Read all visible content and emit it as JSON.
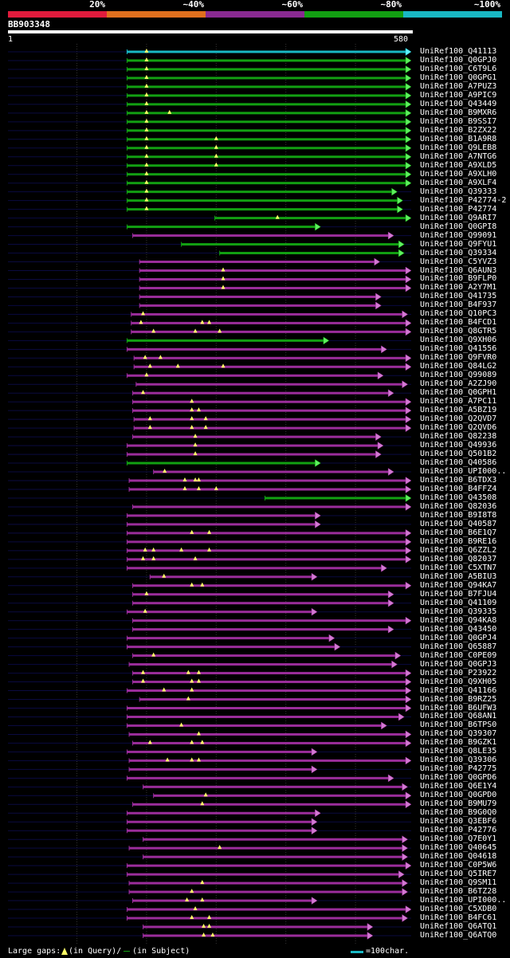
{
  "legend": [
    {
      "label": "20%",
      "color": "#e01b3c"
    },
    {
      "label": "~40%",
      "color": "#e0701e"
    },
    {
      "label": "~60%",
      "color": "#8a2a92"
    },
    {
      "label": "~80%",
      "color": "#12a012"
    },
    {
      "label": "~100%",
      "color": "#19b8c4"
    }
  ],
  "query": {
    "name": "BB903348",
    "start_label": "1",
    "end_label": "580",
    "length": 580
  },
  "colors": {
    "cyan": "#19b8c4",
    "green": "#12a012",
    "magenta": "#9b2d9b",
    "arrow_magenta": "#d27ad2",
    "arrow_green": "#5ef05e",
    "arrow_cyan": "#5ef0ff",
    "gap": "#ffff66",
    "faint": "#0a0a40",
    "grid": "#333333"
  },
  "hits": [
    {
      "id": "UniRef100_Q41113",
      "start": 172,
      "end": 580,
      "color": "cyan",
      "gaps": [
        200
      ]
    },
    {
      "id": "UniRef100_Q0GPJ0",
      "start": 172,
      "end": 580,
      "color": "green",
      "gaps": [
        200
      ]
    },
    {
      "id": "UniRef100_C6T9L6",
      "start": 172,
      "end": 580,
      "color": "green",
      "gaps": [
        200
      ]
    },
    {
      "id": "UniRef100_Q0GPG1",
      "start": 172,
      "end": 580,
      "color": "green",
      "gaps": [
        200
      ]
    },
    {
      "id": "UniRef100_A7PUZ3",
      "start": 172,
      "end": 580,
      "color": "green",
      "gaps": [
        200
      ]
    },
    {
      "id": "UniRef100_A9PIC9",
      "start": 172,
      "end": 580,
      "color": "green",
      "gaps": [
        200
      ]
    },
    {
      "id": "UniRef100_Q43449",
      "start": 172,
      "end": 580,
      "color": "green",
      "gaps": [
        200
      ]
    },
    {
      "id": "UniRef100_B9MXR6",
      "start": 172,
      "end": 580,
      "color": "green",
      "gaps": [
        200,
        233
      ]
    },
    {
      "id": "UniRef100_B9SSI7",
      "start": 172,
      "end": 580,
      "color": "green",
      "gaps": [
        200
      ]
    },
    {
      "id": "UniRef100_B2ZX22",
      "start": 172,
      "end": 580,
      "color": "green",
      "gaps": [
        200
      ]
    },
    {
      "id": "UniRef100_B1A9R8",
      "start": 172,
      "end": 580,
      "color": "green",
      "gaps": [
        200,
        300
      ]
    },
    {
      "id": "UniRef100_Q9LEB8",
      "start": 172,
      "end": 580,
      "color": "green",
      "gaps": [
        200,
        300
      ]
    },
    {
      "id": "UniRef100_A7NTG6",
      "start": 172,
      "end": 580,
      "color": "green",
      "gaps": [
        200,
        300
      ]
    },
    {
      "id": "UniRef100_A9XLD5",
      "start": 172,
      "end": 580,
      "color": "green",
      "gaps": [
        200,
        300
      ]
    },
    {
      "id": "UniRef100_A9XLH0",
      "start": 172,
      "end": 580,
      "color": "green",
      "gaps": [
        200
      ]
    },
    {
      "id": "UniRef100_A9XLF4",
      "start": 172,
      "end": 580,
      "color": "green",
      "gaps": [
        200
      ]
    },
    {
      "id": "UniRef100_Q39333",
      "start": 172,
      "end": 560,
      "color": "green",
      "gaps": [
        200
      ]
    },
    {
      "id": "UniRef100_P42774-2",
      "start": 172,
      "end": 568,
      "color": "green",
      "gaps": [
        200
      ]
    },
    {
      "id": "UniRef100_P42774",
      "start": 172,
      "end": 568,
      "color": "green",
      "gaps": [
        200
      ]
    },
    {
      "id": "UniRef100_Q9ARI7",
      "start": 298,
      "end": 580,
      "color": "green",
      "gaps": [
        388
      ]
    },
    {
      "id": "UniRef100_Q0GPI8",
      "start": 172,
      "end": 450,
      "color": "green",
      "gaps": []
    },
    {
      "id": "UniRef100_Q99091",
      "start": 180,
      "end": 555,
      "color": "magenta",
      "gaps": []
    },
    {
      "id": "UniRef100_Q9FYU1",
      "start": 250,
      "end": 570,
      "color": "green",
      "gaps": []
    },
    {
      "id": "UniRef100_Q39334",
      "start": 305,
      "end": 570,
      "color": "green",
      "gaps": []
    },
    {
      "id": "UniRef100_C5YVZ3",
      "start": 190,
      "end": 535,
      "color": "magenta",
      "gaps": []
    },
    {
      "id": "UniRef100_Q6AUN3",
      "start": 190,
      "end": 580,
      "color": "magenta",
      "gaps": [
        310
      ]
    },
    {
      "id": "UniRef100_B9FLP0",
      "start": 190,
      "end": 580,
      "color": "magenta",
      "gaps": [
        310
      ]
    },
    {
      "id": "UniRef100_A2Y7M1",
      "start": 190,
      "end": 580,
      "color": "magenta",
      "gaps": [
        310
      ]
    },
    {
      "id": "UniRef100_Q41735",
      "start": 190,
      "end": 537,
      "color": "magenta",
      "gaps": []
    },
    {
      "id": "UniRef100_B4F937",
      "start": 190,
      "end": 537,
      "color": "magenta",
      "gaps": []
    },
    {
      "id": "UniRef100_Q10PC3",
      "start": 178,
      "end": 575,
      "color": "magenta",
      "gaps": [
        195
      ]
    },
    {
      "id": "UniRef100_B4FCD1",
      "start": 178,
      "end": 580,
      "color": "magenta",
      "gaps": [
        192,
        280,
        290
      ]
    },
    {
      "id": "UniRef100_Q8GTR5",
      "start": 178,
      "end": 580,
      "color": "magenta",
      "gaps": [
        210,
        270,
        305
      ]
    },
    {
      "id": "UniRef100_Q9XH06",
      "start": 172,
      "end": 462,
      "color": "green",
      "gaps": []
    },
    {
      "id": "UniRef100_Q41556",
      "start": 172,
      "end": 545,
      "color": "magenta",
      "gaps": []
    },
    {
      "id": "UniRef100_Q9FVR0",
      "start": 182,
      "end": 580,
      "color": "magenta",
      "gaps": [
        198,
        220
      ]
    },
    {
      "id": "UniRef100_Q84LG2",
      "start": 182,
      "end": 580,
      "color": "magenta",
      "gaps": [
        205,
        245,
        310
      ]
    },
    {
      "id": "UniRef100_Q99089",
      "start": 172,
      "end": 540,
      "color": "magenta",
      "gaps": [
        200
      ]
    },
    {
      "id": "UniRef100_A2ZJ90",
      "start": 185,
      "end": 575,
      "color": "magenta",
      "gaps": []
    },
    {
      "id": "UniRef100_Q0GPH1",
      "start": 180,
      "end": 555,
      "color": "magenta",
      "gaps": [
        195
      ]
    },
    {
      "id": "UniRef100_A7PC11",
      "start": 180,
      "end": 580,
      "color": "magenta",
      "gaps": [
        265
      ]
    },
    {
      "id": "UniRef100_A5BZ19",
      "start": 180,
      "end": 580,
      "color": "magenta",
      "gaps": [
        265,
        275
      ]
    },
    {
      "id": "UniRef100_Q2QVD7",
      "start": 182,
      "end": 580,
      "color": "magenta",
      "gaps": [
        205,
        265,
        285
      ]
    },
    {
      "id": "UniRef100_Q2QVD6",
      "start": 182,
      "end": 580,
      "color": "magenta",
      "gaps": [
        205,
        265,
        285
      ]
    },
    {
      "id": "UniRef100_Q82238",
      "start": 180,
      "end": 537,
      "color": "magenta",
      "gaps": [
        270
      ]
    },
    {
      "id": "UniRef100_Q49936",
      "start": 172,
      "end": 540,
      "color": "magenta",
      "gaps": [
        270
      ]
    },
    {
      "id": "UniRef100_Q501B2",
      "start": 172,
      "end": 537,
      "color": "magenta",
      "gaps": [
        270
      ]
    },
    {
      "id": "UniRef100_Q40586",
      "start": 172,
      "end": 450,
      "color": "green",
      "gaps": []
    },
    {
      "id": "UniRef100_UPI000..",
      "start": 210,
      "end": 555,
      "color": "magenta",
      "gaps": [
        226
      ]
    },
    {
      "id": "UniRef100_B6TDX3",
      "start": 175,
      "end": 580,
      "color": "magenta",
      "gaps": [
        255,
        270,
        275
      ]
    },
    {
      "id": "UniRef100_B4FFZ4",
      "start": 175,
      "end": 580,
      "color": "magenta",
      "gaps": [
        255,
        275,
        300
      ]
    },
    {
      "id": "UniRef100_Q43508",
      "start": 370,
      "end": 580,
      "color": "green",
      "gaps": []
    },
    {
      "id": "UniRef100_Q82036",
      "start": 180,
      "end": 580,
      "color": "magenta",
      "gaps": []
    },
    {
      "id": "UniRef100_B9I8T8",
      "start": 172,
      "end": 450,
      "color": "magenta",
      "gaps": []
    },
    {
      "id": "UniRef100_Q40587",
      "start": 172,
      "end": 450,
      "color": "magenta",
      "gaps": []
    },
    {
      "id": "UniRef100_B6E1Q7",
      "start": 172,
      "end": 580,
      "color": "magenta",
      "gaps": [
        265,
        290
      ]
    },
    {
      "id": "UniRef100_B9RE16",
      "start": 172,
      "end": 580,
      "color": "magenta",
      "gaps": []
    },
    {
      "id": "UniRef100_Q6ZZL2",
      "start": 172,
      "end": 580,
      "color": "magenta",
      "gaps": [
        198,
        210,
        250,
        290
      ]
    },
    {
      "id": "UniRef100_Q82037",
      "start": 172,
      "end": 580,
      "color": "magenta",
      "gaps": [
        195,
        210,
        270
      ]
    },
    {
      "id": "UniRef100_C5XTN7",
      "start": 172,
      "end": 545,
      "color": "magenta",
      "gaps": []
    },
    {
      "id": "UniRef100_A5BIU3",
      "start": 205,
      "end": 445,
      "color": "magenta",
      "gaps": [
        225
      ]
    },
    {
      "id": "UniRef100_Q94KA7",
      "start": 180,
      "end": 580,
      "color": "magenta",
      "gaps": [
        265,
        280
      ]
    },
    {
      "id": "UniRef100_B7FJU4",
      "start": 180,
      "end": 555,
      "color": "magenta",
      "gaps": [
        200
      ]
    },
    {
      "id": "UniRef100_Q41109",
      "start": 180,
      "end": 555,
      "color": "magenta",
      "gaps": []
    },
    {
      "id": "UniRef100_Q39335",
      "start": 172,
      "end": 445,
      "color": "magenta",
      "gaps": [
        198
      ]
    },
    {
      "id": "UniRef100_Q94KA8",
      "start": 180,
      "end": 580,
      "color": "magenta",
      "gaps": []
    },
    {
      "id": "UniRef100_Q43450",
      "start": 180,
      "end": 555,
      "color": "magenta",
      "gaps": []
    },
    {
      "id": "UniRef100_Q0GPJ4",
      "start": 172,
      "end": 470,
      "color": "magenta",
      "gaps": []
    },
    {
      "id": "UniRef100_Q65887",
      "start": 172,
      "end": 478,
      "color": "magenta",
      "gaps": []
    },
    {
      "id": "UniRef100_C0PE09",
      "start": 180,
      "end": 565,
      "color": "magenta",
      "gaps": [
        210
      ]
    },
    {
      "id": "UniRef100_Q0GPJ3",
      "start": 175,
      "end": 560,
      "color": "magenta",
      "gaps": []
    },
    {
      "id": "UniRef100_P23922",
      "start": 180,
      "end": 580,
      "color": "magenta",
      "gaps": [
        195,
        260,
        275
      ]
    },
    {
      "id": "UniRef100_Q9XH05",
      "start": 180,
      "end": 580,
      "color": "magenta",
      "gaps": [
        195,
        265,
        275
      ]
    },
    {
      "id": "UniRef100_Q41166",
      "start": 172,
      "end": 580,
      "color": "magenta",
      "gaps": [
        225,
        265
      ]
    },
    {
      "id": "UniRef100_B9RZ25",
      "start": 190,
      "end": 580,
      "color": "magenta",
      "gaps": [
        260
      ]
    },
    {
      "id": "UniRef100_B6UFW3",
      "start": 172,
      "end": 580,
      "color": "magenta",
      "gaps": []
    },
    {
      "id": "UniRef100_Q68AN1",
      "start": 172,
      "end": 570,
      "color": "magenta",
      "gaps": []
    },
    {
      "id": "UniRef100_B6TPS0",
      "start": 172,
      "end": 545,
      "color": "magenta",
      "gaps": [
        250
      ]
    },
    {
      "id": "UniRef100_Q39307",
      "start": 175,
      "end": 580,
      "color": "magenta",
      "gaps": [
        275
      ]
    },
    {
      "id": "UniRef100_B9GZK1",
      "start": 180,
      "end": 580,
      "color": "magenta",
      "gaps": [
        205,
        265,
        280
      ]
    },
    {
      "id": "UniRef100_Q8LE35",
      "start": 172,
      "end": 445,
      "color": "magenta",
      "gaps": []
    },
    {
      "id": "UniRef100_Q39306",
      "start": 175,
      "end": 580,
      "color": "magenta",
      "gaps": [
        230,
        265,
        275
      ]
    },
    {
      "id": "UniRef100_P42775",
      "start": 175,
      "end": 445,
      "color": "magenta",
      "gaps": []
    },
    {
      "id": "UniRef100_Q0GPD6",
      "start": 172,
      "end": 555,
      "color": "magenta",
      "gaps": []
    },
    {
      "id": "UniRef100_Q6E1Y4",
      "start": 195,
      "end": 575,
      "color": "magenta",
      "gaps": []
    },
    {
      "id": "UniRef100_Q0GPD0",
      "start": 210,
      "end": 580,
      "color": "magenta",
      "gaps": [
        285
      ]
    },
    {
      "id": "UniRef100_B9MU79",
      "start": 180,
      "end": 580,
      "color": "magenta",
      "gaps": [
        280
      ]
    },
    {
      "id": "UniRef100_B9G0Q0",
      "start": 172,
      "end": 450,
      "color": "magenta",
      "gaps": []
    },
    {
      "id": "UniRef100_Q3EBF6",
      "start": 172,
      "end": 445,
      "color": "magenta",
      "gaps": []
    },
    {
      "id": "UniRef100_P42776",
      "start": 172,
      "end": 445,
      "color": "magenta",
      "gaps": []
    },
    {
      "id": "UniRef100_Q7E0Y1",
      "start": 195,
      "end": 575,
      "color": "magenta",
      "gaps": []
    },
    {
      "id": "UniRef100_Q40645",
      "start": 175,
      "end": 575,
      "color": "magenta",
      "gaps": [
        305
      ]
    },
    {
      "id": "UniRef100_Q04618",
      "start": 195,
      "end": 575,
      "color": "magenta",
      "gaps": []
    },
    {
      "id": "UniRef100_C0P5W6",
      "start": 172,
      "end": 580,
      "color": "magenta",
      "gaps": []
    },
    {
      "id": "UniRef100_Q5IRE7",
      "start": 172,
      "end": 570,
      "color": "magenta",
      "gaps": []
    },
    {
      "id": "UniRef100_Q9SM11",
      "start": 175,
      "end": 575,
      "color": "magenta",
      "gaps": [
        280
      ]
    },
    {
      "id": "UniRef100_B6TZ28",
      "start": 175,
      "end": 575,
      "color": "magenta",
      "gaps": [
        265
      ]
    },
    {
      "id": "UniRef100_UPI000..",
      "start": 180,
      "end": 445,
      "color": "magenta",
      "gaps": [
        258,
        280
      ]
    },
    {
      "id": "UniRef100_C5XDB0",
      "start": 172,
      "end": 580,
      "color": "magenta",
      "gaps": [
        270
      ]
    },
    {
      "id": "UniRef100_B4FC61",
      "start": 172,
      "end": 575,
      "color": "magenta",
      "gaps": [
        265,
        290
      ]
    },
    {
      "id": "UniRef100_Q6ATQ1",
      "start": 195,
      "end": 525,
      "color": "magenta",
      "gaps": [
        282,
        290
      ]
    },
    {
      "id": "UniRef100_Q6ATQ0",
      "start": 195,
      "end": 525,
      "color": "magenta",
      "gaps": [
        282,
        295
      ]
    }
  ],
  "footer": {
    "gaps_label": "Large gaps:",
    "query_gap_label": "(in Query)/",
    "subject_gap_label": "(in Subject)",
    "scale_label": "=100char."
  }
}
